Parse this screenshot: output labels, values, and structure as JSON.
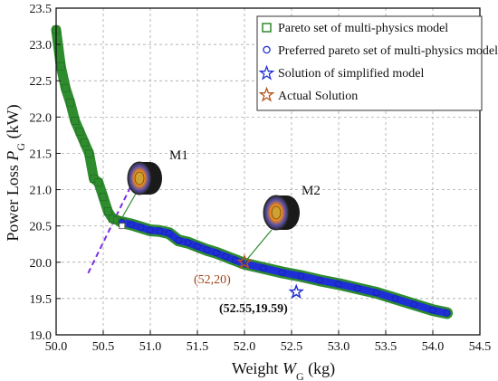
{
  "chart_data": {
    "type": "scatter",
    "title": "",
    "xlabel_prefix": "Weight ",
    "xlabel_var": "W",
    "xlabel_sub": "G",
    "xlabel_suffix": " (kg)",
    "ylabel_prefix": "Power Loss ",
    "ylabel_var": "P",
    "ylabel_sub": "G",
    "ylabel_suffix": " (kW)",
    "xlim": [
      50.0,
      54.5
    ],
    "ylim": [
      19.0,
      23.5
    ],
    "xticks": [
      "50.0",
      "50.5",
      "51.0",
      "51.5",
      "52.0",
      "52.5",
      "53.0",
      "53.5",
      "54.0",
      "54.5"
    ],
    "yticks": [
      "19.0",
      "19.5",
      "20.0",
      "20.5",
      "21.0",
      "21.5",
      "22.0",
      "22.5",
      "23.0",
      "23.5"
    ],
    "grid": true,
    "legend_position": "top-right",
    "series": [
      {
        "name": "Pareto set of multi-physics model",
        "marker": "square",
        "color": "#2e8b2e",
        "x": [
          50.0,
          50.05,
          50.1,
          50.15,
          50.2,
          50.25,
          50.3,
          50.35,
          50.4,
          50.45,
          50.5,
          50.55,
          50.6,
          50.65,
          50.7
        ],
        "y": [
          23.2,
          22.7,
          22.4,
          22.2,
          21.95,
          21.8,
          21.65,
          21.5,
          21.15,
          21.1,
          20.9,
          20.7,
          20.6,
          20.58,
          20.55
        ]
      },
      {
        "name": "Preferred pareto set of multi-physics model",
        "marker": "circle",
        "color": "#1f2fd6",
        "x": [
          50.7,
          50.8,
          50.9,
          51.0,
          51.1,
          51.2,
          51.3,
          51.4,
          51.5,
          51.6,
          51.7,
          51.8,
          51.9,
          52.0,
          52.2,
          52.4,
          52.6,
          52.8,
          53.0,
          53.2,
          53.4,
          53.6,
          53.8,
          54.0,
          54.15
        ],
        "y": [
          20.55,
          20.52,
          20.48,
          20.44,
          20.43,
          20.4,
          20.3,
          20.27,
          20.22,
          20.17,
          20.13,
          20.08,
          20.03,
          19.98,
          19.92,
          19.86,
          19.81,
          19.75,
          19.7,
          19.64,
          19.58,
          19.5,
          19.42,
          19.34,
          19.3
        ]
      },
      {
        "name": "Solution of simplified model",
        "marker": "star",
        "color": "#1f2fd6",
        "x": [
          52.55
        ],
        "y": [
          19.59
        ]
      },
      {
        "name": "Actual Solution",
        "marker": "star",
        "color": "#b5541c",
        "x": [
          52.0
        ],
        "y": [
          20.0
        ]
      }
    ],
    "annotations": [
      {
        "text": "M1",
        "x": 50.97,
        "y": 21.22
      },
      {
        "text": "M2",
        "x": 52.2,
        "y": 20.58
      },
      {
        "text": "(52,20)",
        "x": 51.72,
        "y": 19.73
      },
      {
        "text": "(52.55,19.59)",
        "x": 52.1,
        "y": 19.31
      }
    ],
    "tangent_line": {
      "x": [
        50.34,
        50.87
      ],
      "y": [
        19.85,
        21.25
      ]
    }
  }
}
